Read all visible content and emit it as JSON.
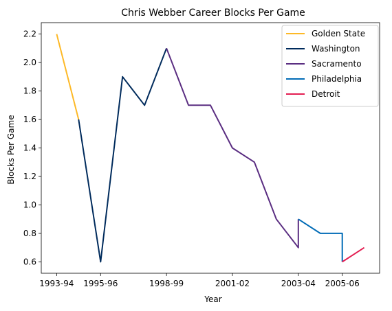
{
  "chart_data": {
    "type": "line",
    "title": "Chris Webber Career Blocks Per Game",
    "xlabel": "Year",
    "ylabel": "Blocks Per Game",
    "ylim": [
      0.52,
      2.28
    ],
    "yticks": [
      0.6,
      0.8,
      1.0,
      1.2,
      1.4,
      1.6,
      1.8,
      2.0,
      2.2
    ],
    "ytick_labels": [
      "0.6",
      "0.8",
      "1.0",
      "1.2",
      "1.4",
      "1.6",
      "1.8",
      "2.0",
      "2.2"
    ],
    "xticks": [
      0,
      2,
      5,
      8,
      11,
      13
    ],
    "xtick_labels": [
      "1993-94",
      "1995-96",
      "1998-99",
      "2001-02",
      "2003-04",
      "2005-06"
    ],
    "xlim": [
      -0.7,
      14.7
    ],
    "grid": false,
    "legend_position": "top-right",
    "series": [
      {
        "name": "Golden State",
        "color": "#FDB927",
        "x": [
          0,
          1
        ],
        "values": [
          2.2,
          1.6
        ]
      },
      {
        "name": "Washington",
        "color": "#002B5C",
        "x": [
          1,
          2,
          3,
          4,
          5
        ],
        "values": [
          1.6,
          0.6,
          1.9,
          1.7,
          2.1
        ]
      },
      {
        "name": "Sacramento",
        "color": "#5A2D81",
        "x": [
          5,
          6,
          7,
          8,
          9,
          10,
          11,
          11
        ],
        "values": [
          2.1,
          1.7,
          1.7,
          1.4,
          1.3,
          0.9,
          0.7,
          0.9
        ]
      },
      {
        "name": "Philadelphia",
        "color": "#006BB6",
        "x": [
          11,
          12,
          13,
          13
        ],
        "values": [
          0.9,
          0.8,
          0.8,
          0.6
        ]
      },
      {
        "name": "Detroit",
        "color": "#E31D51",
        "x": [
          13,
          14
        ],
        "values": [
          0.6,
          0.7
        ]
      }
    ]
  }
}
